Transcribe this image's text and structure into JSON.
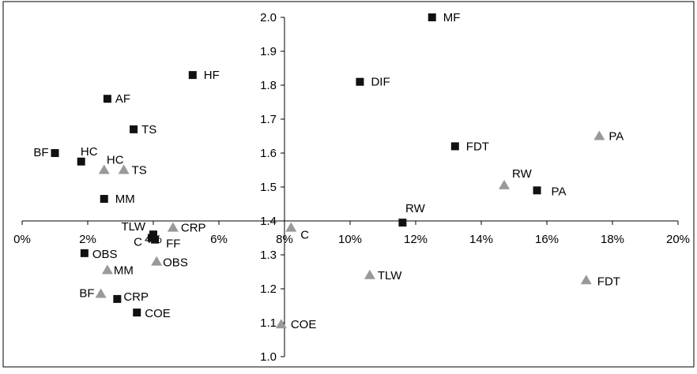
{
  "chart_data": {
    "type": "scatter",
    "title": "",
    "xlabel": "",
    "ylabel": "",
    "xlim": [
      0,
      20
    ],
    "ylim": [
      1.0,
      2.0
    ],
    "x_axis_crosses_y_at": 1.4,
    "y_axis_crosses_x_at": 8,
    "x_ticks": [
      0,
      2,
      4,
      6,
      8,
      10,
      12,
      14,
      16,
      18,
      20
    ],
    "x_tick_labels": [
      "0%",
      "2%",
      "4%",
      "6%",
      "8%",
      "10%",
      "12%",
      "14%",
      "16%",
      "18%",
      "20%"
    ],
    "y_ticks": [
      1.0,
      1.1,
      1.2,
      1.3,
      1.4,
      1.5,
      1.6,
      1.7,
      1.8,
      1.9,
      2.0
    ],
    "y_tick_labels": [
      "1.0",
      "1.1",
      "1.2",
      "1.3",
      "1.4",
      "1.5",
      "1.6",
      "1.7",
      "1.8",
      "1.9",
      "2.0"
    ],
    "grid": false,
    "legend": "none",
    "series": [
      {
        "marker": "square",
        "color": "#111111",
        "points": [
          {
            "label": "MF",
            "x": 12.5,
            "y": 2.0
          },
          {
            "label": "HF",
            "x": 5.2,
            "y": 1.83
          },
          {
            "label": "DIF",
            "x": 10.3,
            "y": 1.81
          },
          {
            "label": "AF",
            "x": 2.6,
            "y": 1.76
          },
          {
            "label": "TS",
            "x": 3.4,
            "y": 1.67
          },
          {
            "label": "FDT",
            "x": 13.2,
            "y": 1.62
          },
          {
            "label": "BF",
            "x": 1.0,
            "y": 1.6
          },
          {
            "label": "HC",
            "x": 1.8,
            "y": 1.575
          },
          {
            "label": "PA",
            "x": 15.7,
            "y": 1.49
          },
          {
            "label": "MM",
            "x": 2.5,
            "y": 1.465
          },
          {
            "label": "RW",
            "x": 11.6,
            "y": 1.395
          },
          {
            "label": "TLW",
            "x": 4.0,
            "y": 1.36
          },
          {
            "label": "C",
            "x": 3.95,
            "y": 1.35
          },
          {
            "label": "FF",
            "x": 4.05,
            "y": 1.345
          },
          {
            "label": "OBS",
            "x": 1.9,
            "y": 1.305
          },
          {
            "label": "CRP",
            "x": 2.9,
            "y": 1.17
          },
          {
            "label": "COE",
            "x": 3.5,
            "y": 1.13
          }
        ]
      },
      {
        "marker": "triangle",
        "color": "#999999",
        "points": [
          {
            "label": "PA",
            "x": 17.6,
            "y": 1.65
          },
          {
            "label": "HC",
            "x": 2.5,
            "y": 1.55
          },
          {
            "label": "TS",
            "x": 3.1,
            "y": 1.55
          },
          {
            "label": "RW",
            "x": 14.7,
            "y": 1.505
          },
          {
            "label": "CRP",
            "x": 4.6,
            "y": 1.38
          },
          {
            "label": "C",
            "x": 8.2,
            "y": 1.38
          },
          {
            "label": "OBS",
            "x": 4.1,
            "y": 1.28
          },
          {
            "label": "MM",
            "x": 2.6,
            "y": 1.255
          },
          {
            "label": "TLW",
            "x": 10.6,
            "y": 1.24
          },
          {
            "label": "FDT",
            "x": 17.2,
            "y": 1.225
          },
          {
            "label": "BF",
            "x": 2.4,
            "y": 1.185
          },
          {
            "label": "COE",
            "x": 7.9,
            "y": 1.095
          }
        ]
      }
    ]
  }
}
